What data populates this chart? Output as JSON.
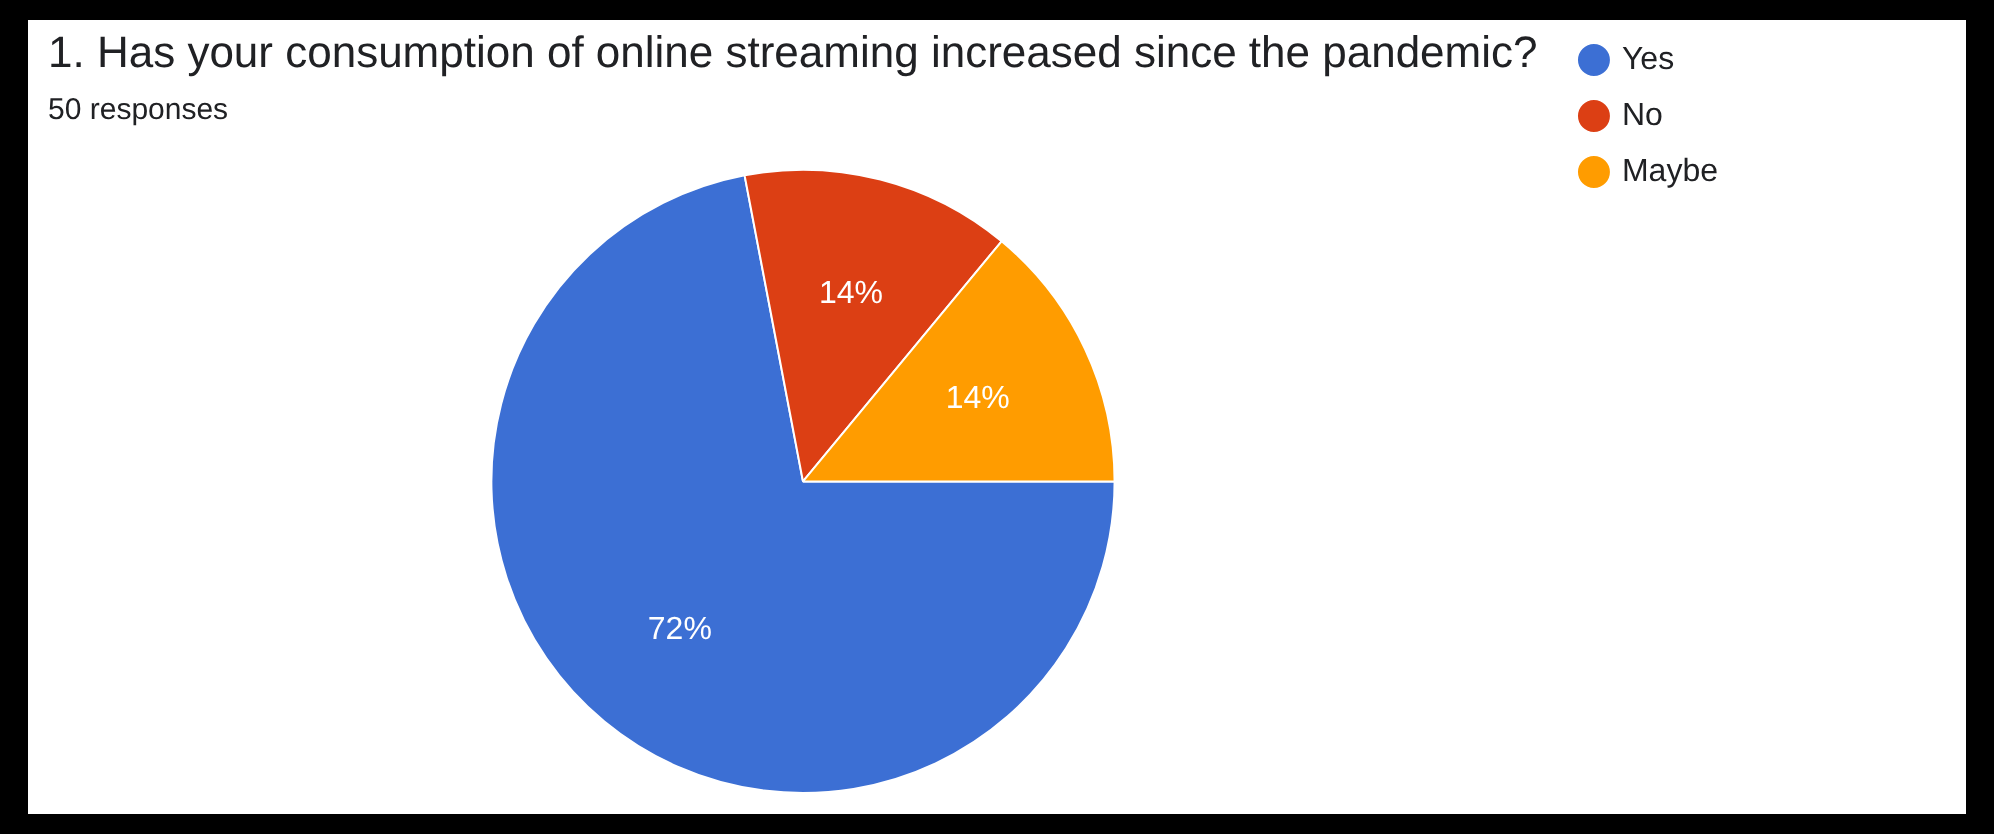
{
  "chart_data": {
    "type": "pie",
    "title": "1. Has your consumption of online streaming increased since the pandemic?",
    "subtitle": "50 responses",
    "categories": [
      "Yes",
      "No",
      "Maybe"
    ],
    "values": [
      72,
      14,
      14
    ],
    "colors": [
      "#3c6fd4",
      "#dc3f14",
      "#ff9c00"
    ],
    "value_labels": [
      "72%",
      "14%",
      "14%"
    ],
    "legend": "right"
  }
}
